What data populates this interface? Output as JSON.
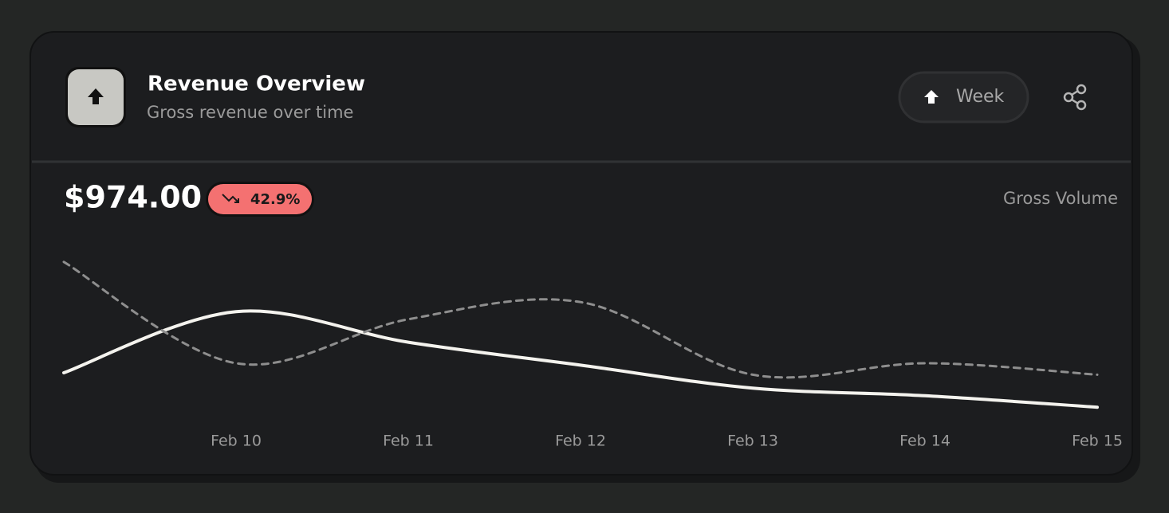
{
  "header": {
    "title": "Revenue Overview",
    "subtitle": "Gross revenue over time",
    "button": "Week"
  },
  "summary": {
    "amount": "$974.00",
    "change": "42.9%",
    "label": "Gross Volume"
  },
  "chart_data": {
    "type": "line",
    "categories": [
      null,
      "Feb 10",
      "Feb 11",
      "Feb 12",
      "Feb 13",
      "Feb 14",
      "Feb 15"
    ],
    "series": [
      {
        "color": "#f4f3ee",
        "style": "solid",
        "values": [
          30,
          62,
          46,
          34,
          22,
          18,
          12
        ]
      },
      {
        "color": "#8e8e8e",
        "style": "dashed",
        "values": [
          88,
          35,
          58,
          67,
          29,
          35,
          29
        ]
      }
    ],
    "ylim": [
      0,
      100
    ]
  }
}
